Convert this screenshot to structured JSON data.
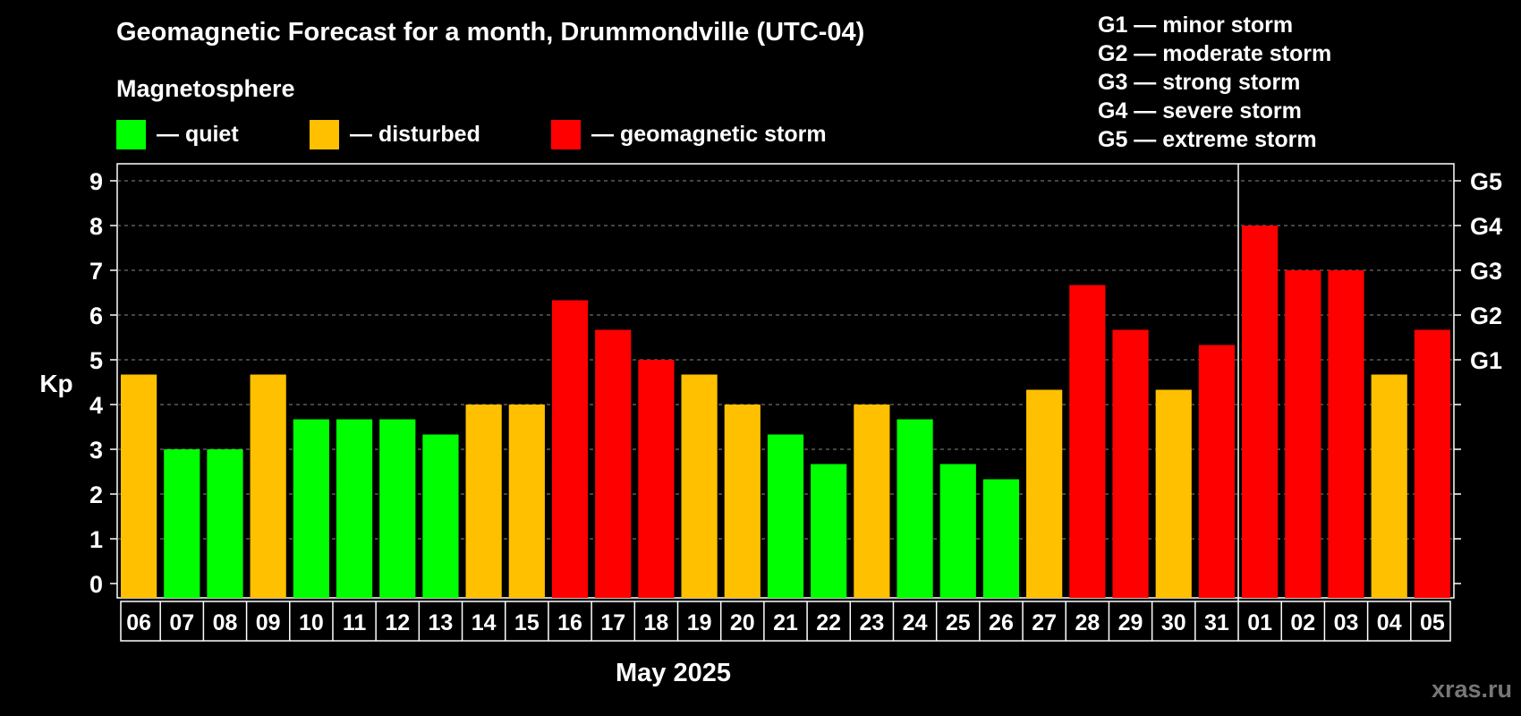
{
  "title": "Geomagnetic Forecast for a month, Drummondville (UTC-04)",
  "legend": {
    "heading": "Magnetosphere",
    "items": [
      {
        "label": "— quiet",
        "color": "#00ff00"
      },
      {
        "label": "— disturbed",
        "color": "#ffc000"
      },
      {
        "label": "— geomagnetic storm",
        "color": "#ff0000"
      }
    ]
  },
  "storm_scale": [
    "G1 — minor storm",
    "G2 — moderate storm",
    "G3 — strong storm",
    "G4 — severe storm",
    "G5 — extreme storm"
  ],
  "month_label": "May 2025",
  "watermark": "xras.ru",
  "chart_data": {
    "type": "bar",
    "title": "Geomagnetic Forecast for a month, Drummondville (UTC-04)",
    "ylabel": "Kp",
    "xlabel": "May 2025",
    "ylim": [
      0,
      9
    ],
    "yticks": [
      0,
      1,
      2,
      3,
      4,
      5,
      6,
      7,
      8,
      9
    ],
    "right_axis_labels": [
      {
        "value": 5,
        "label": "G1"
      },
      {
        "value": 6,
        "label": "G2"
      },
      {
        "value": 7,
        "label": "G3"
      },
      {
        "value": 8,
        "label": "G4"
      },
      {
        "value": 9,
        "label": "G5"
      }
    ],
    "grid": true,
    "month_divider_before": "01",
    "categories": [
      "06",
      "07",
      "08",
      "09",
      "10",
      "11",
      "12",
      "13",
      "14",
      "15",
      "16",
      "17",
      "18",
      "19",
      "20",
      "21",
      "22",
      "23",
      "24",
      "25",
      "26",
      "27",
      "28",
      "29",
      "30",
      "31",
      "01",
      "02",
      "03",
      "04",
      "05"
    ],
    "values": [
      4.67,
      3.0,
      3.0,
      4.67,
      3.67,
      3.67,
      3.67,
      3.33,
      4.0,
      4.0,
      6.33,
      5.67,
      5.0,
      4.67,
      4.0,
      3.33,
      2.67,
      4.0,
      3.67,
      2.67,
      2.33,
      4.33,
      6.67,
      5.67,
      4.33,
      5.33,
      8.0,
      7.0,
      7.0,
      4.67,
      5.67
    ],
    "levels": [
      "disturbed",
      "quiet",
      "quiet",
      "disturbed",
      "quiet",
      "quiet",
      "quiet",
      "quiet",
      "disturbed",
      "disturbed",
      "storm",
      "storm",
      "storm",
      "disturbed",
      "disturbed",
      "quiet",
      "quiet",
      "disturbed",
      "quiet",
      "quiet",
      "quiet",
      "disturbed",
      "storm",
      "storm",
      "disturbed",
      "storm",
      "storm",
      "storm",
      "storm",
      "disturbed",
      "storm"
    ],
    "colors": {
      "quiet": "#00ff00",
      "disturbed": "#ffc000",
      "storm": "#ff0000"
    }
  }
}
